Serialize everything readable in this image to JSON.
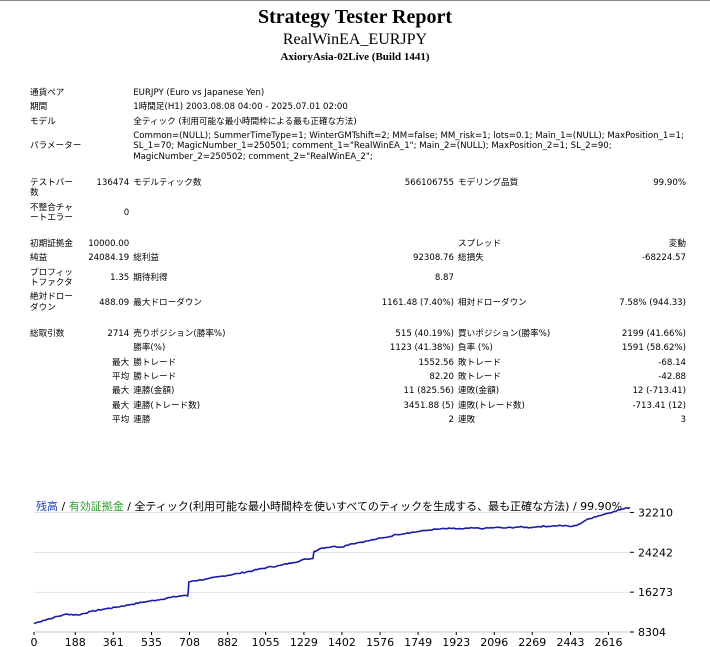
{
  "header": {
    "title": "Strategy Tester Report",
    "ea": "RealWinEA_EURJPY",
    "server": "AxioryAsia-02Live (Build 1441)"
  },
  "info": {
    "symbol_label": "通貨ペア",
    "symbol_value": "EURJPY (Euro vs Japanese Yen)",
    "period_label": "期間",
    "period_value": "1時間足(H1) 2003.08.08 04:00 - 2025.07.01 02:00",
    "model_label": "モデル",
    "model_value": "全ティック (利用可能な最小時間枠による最も正確な方法)",
    "params_label": "パラメーター",
    "params_value": "Common=(NULL); SummerTimeType=1; WinterGMTshift=2; MM=false; MM_risk=1; lots=0.1; Main_1=(NULL); MaxPosition_1=1; SL_1=70; MagicNumber_1=250501; comment_1=\"RealWinEA_1\"; Main_2=(NULL); MaxPosition_2=1; SL_2=90; MagicNumber_2=250502; comment_2=\"RealWinEA_2\";"
  },
  "stats": {
    "bars_label": "テストバー数",
    "bars_value": "136474",
    "ticks_label": "モデルティック数",
    "ticks_value": "566106755",
    "quality_label": "モデリング品質",
    "quality_value": "99.90%",
    "mismatch_label": "不整合チャートエラー",
    "mismatch_value": "0",
    "deposit_label": "初期証拠金",
    "deposit_value": "10000.00",
    "spread_label": "スプレッド",
    "spread_value": "変動",
    "net_label": "純益",
    "net_value": "24084.19",
    "gross_profit_label": "総利益",
    "gross_profit_value": "92308.76",
    "gross_loss_label": "総損失",
    "gross_loss_value": "-68224.57",
    "pf_label": "プロフィットファクタ",
    "pf_value": "1.35",
    "expected_label": "期待利得",
    "expected_value": "8.87",
    "abs_dd_label": "絶対ドローダウン",
    "abs_dd_value": "488.09",
    "max_dd_label": "最大ドローダウン",
    "max_dd_value": "1161.48 (7.40%)",
    "rel_dd_label": "相対ドローダウン",
    "rel_dd_value": "7.58% (944.33)",
    "trades_label": "総取引数",
    "trades_value": "2714",
    "short_label": "売りポジション(勝率%)",
    "short_value": "515 (40.19%)",
    "long_label": "買いポジション(勝率%)",
    "long_value": "2199 (41.66%)",
    "win_label": "勝率(%)",
    "win_value": "1123 (41.38%)",
    "loss_label": "負率 (%)",
    "loss_value": "1591 (58.62%)",
    "max_label": "最大",
    "max_win_label": "勝トレード",
    "max_win_value": "1552.56",
    "max_loss_label": "敗トレード",
    "max_loss_value": "-68.14",
    "avg_label": "平均",
    "avg_win_label": "勝トレード",
    "avg_win_value": "82.20",
    "avg_loss_label": "敗トレード",
    "avg_loss_value": "-42.88",
    "max2_label": "最大",
    "cw_money_label": "連勝(金額)",
    "cw_money_value": "11 (825.56)",
    "cl_money_label": "連敗(金額)",
    "cl_money_value": "12 (-713.41)",
    "max3_label": "最大",
    "cw_count_label": "連勝(トレード数)",
    "cw_count_value": "3451.88 (5)",
    "cl_count_label": "連敗(トレード数)",
    "cl_count_value": "-713.41 (12)",
    "avg2_label": "平均",
    "avg_cw_label": "連勝",
    "avg_cw_value": "2",
    "avg_cl_label": "連敗",
    "avg_cl_value": "3"
  },
  "chart_legend": {
    "balance": "残高",
    "sep1": " / ",
    "margin": "有効証拠金",
    "rest": " / 全ティック(利用可能な最小時間枠を使いすべてのティックを生成する、最も正確な方法) / 99.90%"
  },
  "colors": {
    "balance": "#1a1aa8",
    "balance_label": "#1f3fbf",
    "margin_label": "#2ca02c",
    "grid": "#c8c8c8",
    "axis": "#000000"
  },
  "chart_data": {
    "type": "line",
    "title": "",
    "xlabel": "",
    "ylabel": "",
    "x_ticks": [
      "0",
      "188",
      "361",
      "535",
      "708",
      "882",
      "1055",
      "1229",
      "1402",
      "1576",
      "1749",
      "1923",
      "2096",
      "2269",
      "2443",
      "2616"
    ],
    "y_ticks": [
      "32210",
      "24242",
      "16273",
      "8304"
    ],
    "xlim": [
      0,
      2714
    ],
    "ylim": [
      8304,
      35500
    ],
    "series": [
      {
        "name": "残高",
        "points": [
          [
            0,
            10000
          ],
          [
            40,
            10600
          ],
          [
            90,
            11200
          ],
          [
            150,
            11900
          ],
          [
            200,
            11700
          ],
          [
            260,
            12400
          ],
          [
            320,
            12900
          ],
          [
            380,
            13300
          ],
          [
            440,
            13800
          ],
          [
            500,
            14300
          ],
          [
            560,
            14700
          ],
          [
            620,
            15200
          ],
          [
            680,
            15600
          ],
          [
            700,
            15500
          ],
          [
            702,
            16200
          ],
          [
            705,
            18300
          ],
          [
            720,
            18500
          ],
          [
            790,
            18900
          ],
          [
            860,
            19500
          ],
          [
            930,
            20000
          ],
          [
            1000,
            20600
          ],
          [
            1060,
            21200
          ],
          [
            1120,
            21600
          ],
          [
            1180,
            22200
          ],
          [
            1240,
            22900
          ],
          [
            1270,
            23000
          ],
          [
            1275,
            24400
          ],
          [
            1310,
            25100
          ],
          [
            1360,
            25400
          ],
          [
            1400,
            25300
          ],
          [
            1440,
            25900
          ],
          [
            1480,
            26200
          ],
          [
            1530,
            26600
          ],
          [
            1560,
            26900
          ],
          [
            1600,
            27200
          ],
          [
            1650,
            27800
          ],
          [
            1700,
            28100
          ],
          [
            1750,
            28400
          ],
          [
            1800,
            28700
          ],
          [
            1850,
            28900
          ],
          [
            1900,
            29000
          ],
          [
            1950,
            28900
          ],
          [
            2000,
            29100
          ],
          [
            2050,
            29000
          ],
          [
            2100,
            29200
          ],
          [
            2150,
            29100
          ],
          [
            2200,
            29300
          ],
          [
            2260,
            29200
          ],
          [
            2300,
            29400
          ],
          [
            2360,
            29500
          ],
          [
            2400,
            29600
          ],
          [
            2450,
            29400
          ],
          [
            2480,
            29800
          ],
          [
            2510,
            30600
          ],
          [
            2550,
            31300
          ],
          [
            2600,
            31900
          ],
          [
            2640,
            32400
          ],
          [
            2680,
            32900
          ],
          [
            2714,
            33200
          ]
        ]
      }
    ]
  }
}
